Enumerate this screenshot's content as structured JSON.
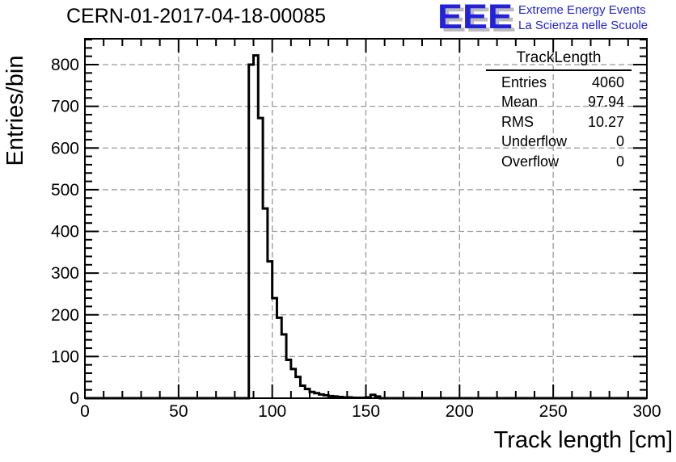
{
  "header": {
    "logo": {
      "letters": "EEE",
      "line1": "Extreme Energy Events",
      "line2": "La Scienza nelle Scuole",
      "color": "#2222dd",
      "shadow_color": "#bbbbbb"
    }
  },
  "stats": {
    "title": "TrackLength",
    "rows": [
      {
        "label": "Entries",
        "value": "4060"
      },
      {
        "label": "Mean",
        "value": "97.94"
      },
      {
        "label": "RMS",
        "value": "10.27"
      },
      {
        "label": "Underflow",
        "value": "0"
      },
      {
        "label": "Overflow",
        "value": "0"
      }
    ]
  },
  "chart_data": {
    "type": "bar",
    "style": "step-histogram",
    "title": "CERN-01-2017-04-18-00085",
    "xlabel": "Track length [cm]",
    "ylabel": "Entries/bin",
    "xlim": [
      0,
      300
    ],
    "ylim": [
      0,
      862
    ],
    "x_major_ticks": [
      0,
      50,
      100,
      150,
      200,
      250,
      300
    ],
    "x_minor_step": 10,
    "y_major_ticks": [
      0,
      100,
      200,
      300,
      400,
      500,
      600,
      700,
      800
    ],
    "y_minor_step": 20,
    "grid": "dashed-major",
    "grid_color": "#999999",
    "line_color": "#000000",
    "bin_start": 85,
    "bin_width": 2.5,
    "values": [
      0,
      800,
      822,
      672,
      455,
      328,
      240,
      193,
      153,
      92,
      70,
      51,
      30,
      22,
      15,
      12,
      9,
      7,
      5,
      4,
      3,
      2,
      2,
      1,
      1,
      1,
      2,
      8,
      4,
      0
    ]
  }
}
